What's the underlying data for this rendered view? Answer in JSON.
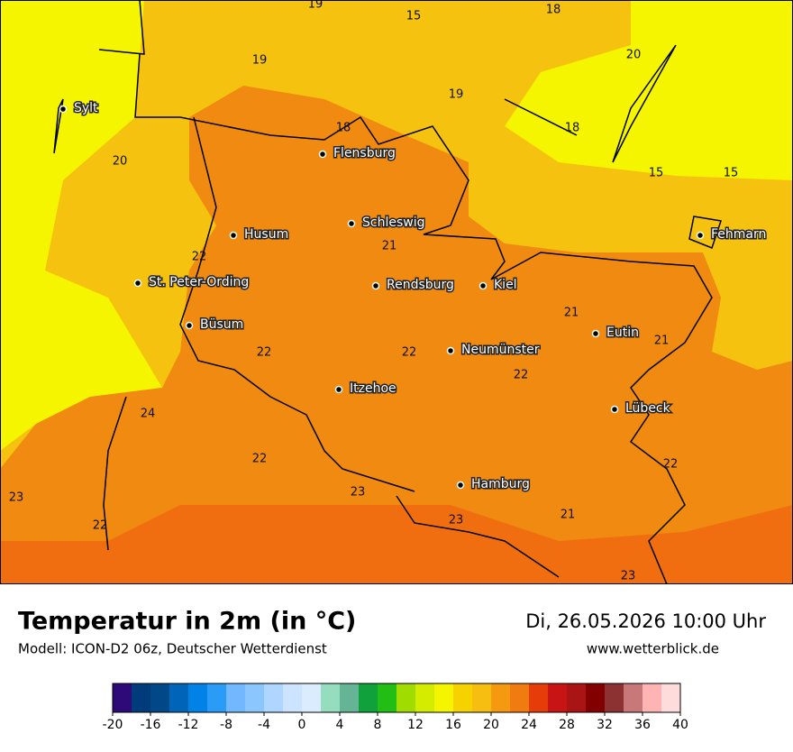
{
  "header": {
    "title": "Temperatur in 2m (in °C)",
    "subtitle": "Modell: ICON-D2 06z, Deutscher Wetterdienst",
    "date": "Di, 26.05.2026 10:00 Uhr",
    "website": "www.wetterblick.de"
  },
  "cities": [
    "Sylt",
    "Flensburg",
    "Schleswig",
    "Husum",
    "Fehmarn",
    "St. Peter-Ording",
    "Rendsburg",
    "Kiel",
    "Büsum",
    "Eutin",
    "Neumünster",
    "Itzehoe",
    "Lübeck",
    "Hamburg"
  ],
  "temperature_labels": [
    19,
    15,
    18,
    19,
    20,
    19,
    18,
    18,
    20,
    15,
    15,
    21,
    22,
    21,
    21,
    22,
    22,
    22,
    24,
    22,
    22,
    23,
    23,
    23,
    21,
    22,
    23
  ],
  "colorbar": {
    "ticks": [
      -20,
      -16,
      -12,
      -8,
      -4,
      0,
      4,
      8,
      12,
      16,
      20,
      24,
      28,
      32,
      36,
      40
    ],
    "colors": [
      "#2e0a78",
      "#003c7c",
      "#004888",
      "#0064b8",
      "#0082e6",
      "#2a9cf8",
      "#72b8ff",
      "#8cc6ff",
      "#aed6ff",
      "#cce4ff",
      "#dcecff",
      "#96dcbe",
      "#66b496",
      "#10a03c",
      "#22be14",
      "#a0dc00",
      "#d4ec00",
      "#f5f500",
      "#f5d200",
      "#f5be10",
      "#f59a10",
      "#f07c10",
      "#e63c0a",
      "#c81414",
      "#aa1414",
      "#820000",
      "#8c3232",
      "#c87878",
      "#ffb4b4",
      "#ffdcdc"
    ]
  }
}
